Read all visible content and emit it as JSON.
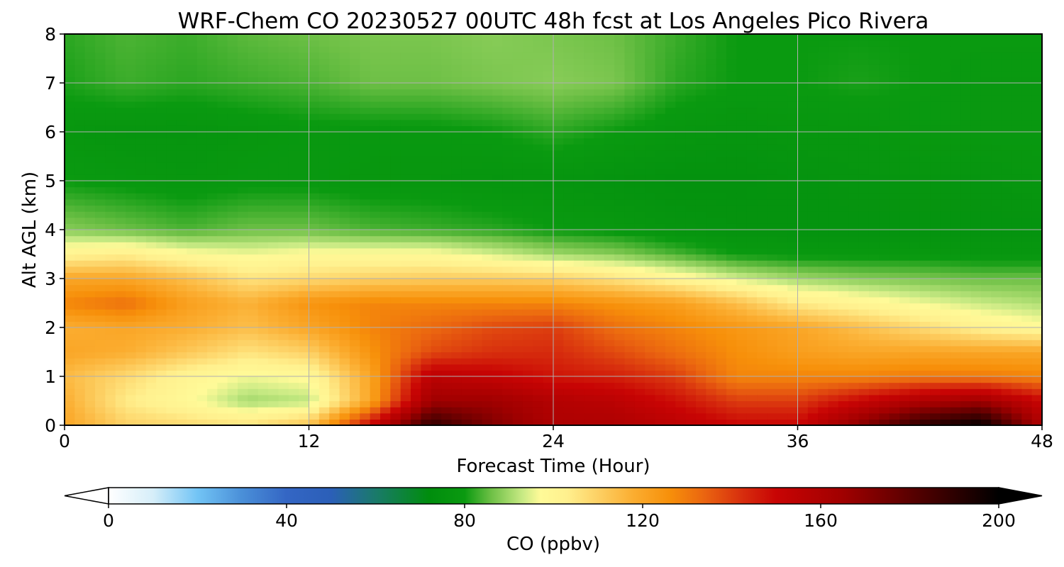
{
  "chart_data": {
    "type": "heatmap",
    "title": "WRF-Chem CO  20230527 00UTC 48h fcst at Los Angeles Pico Rivera",
    "xlabel": "Forecast Time (Hour)",
    "ylabel": "Alt AGL (km)",
    "xlim": [
      0,
      48
    ],
    "ylim": [
      0,
      8
    ],
    "x_ticks": [
      "0",
      "12",
      "24",
      "36",
      "48"
    ],
    "y_ticks": [
      "0",
      "1",
      "2",
      "3",
      "4",
      "5",
      "6",
      "7",
      "8"
    ],
    "grid": true,
    "colorbar": {
      "label": "CO  (ppbv)",
      "range": [
        0,
        200
      ],
      "ticks": [
        "0",
        "40",
        "80",
        "120",
        "160",
        "200"
      ],
      "extend": "both"
    },
    "x": [
      0,
      3,
      6,
      9,
      12,
      15,
      18,
      21,
      24,
      27,
      30,
      33,
      36,
      39,
      42,
      45,
      48
    ],
    "y": [
      0,
      0.5,
      1,
      1.5,
      2,
      2.5,
      3,
      3.5,
      4,
      5,
      6,
      7,
      8
    ],
    "z": [
      [
        120,
        110,
        108,
        106,
        113,
        150,
        190,
        172,
        160,
        160,
        155,
        150,
        150,
        170,
        190,
        200,
        160
      ],
      [
        118,
        104,
        98,
        90,
        92,
        120,
        165,
        165,
        158,
        155,
        148,
        140,
        140,
        150,
        160,
        165,
        150
      ],
      [
        115,
        108,
        100,
        96,
        98,
        120,
        155,
        152,
        147,
        145,
        140,
        128,
        128,
        128,
        130,
        130,
        128
      ],
      [
        120,
        118,
        112,
        106,
        110,
        125,
        138,
        142,
        143,
        138,
        132,
        126,
        122,
        120,
        120,
        120,
        120
      ],
      [
        118,
        120,
        118,
        114,
        120,
        128,
        133,
        138,
        140,
        132,
        128,
        124,
        120,
        114,
        108,
        102,
        98
      ],
      [
        128,
        132,
        122,
        117,
        125,
        128,
        128,
        128,
        128,
        125,
        122,
        114,
        104,
        100,
        96,
        93,
        91
      ],
      [
        120,
        120,
        114,
        106,
        108,
        110,
        111,
        111,
        110,
        106,
        100,
        94,
        90,
        88,
        87,
        86,
        86
      ],
      [
        101,
        103,
        98,
        96,
        98,
        98,
        98,
        94,
        90,
        88,
        84,
        80,
        79,
        79,
        79,
        78,
        78
      ],
      [
        88,
        86,
        84,
        86,
        86,
        84,
        83,
        82,
        80,
        79,
        77,
        76,
        76,
        76,
        76,
        76,
        76
      ],
      [
        80,
        79,
        78,
        79,
        79,
        78,
        78,
        77,
        77,
        76,
        75,
        75,
        76,
        77,
        77,
        77,
        78
      ],
      [
        78,
        77,
        77,
        78,
        79,
        79,
        79,
        80,
        82,
        80,
        78,
        77,
        78,
        78,
        79,
        79,
        79
      ],
      [
        81,
        83,
        82,
        83,
        84,
        86,
        86,
        87,
        88,
        87,
        82,
        80,
        80,
        81,
        80,
        79,
        79
      ],
      [
        82,
        84,
        83,
        85,
        86,
        87,
        87,
        88,
        87,
        86,
        83,
        80,
        80,
        80,
        80,
        80,
        80
      ]
    ]
  }
}
